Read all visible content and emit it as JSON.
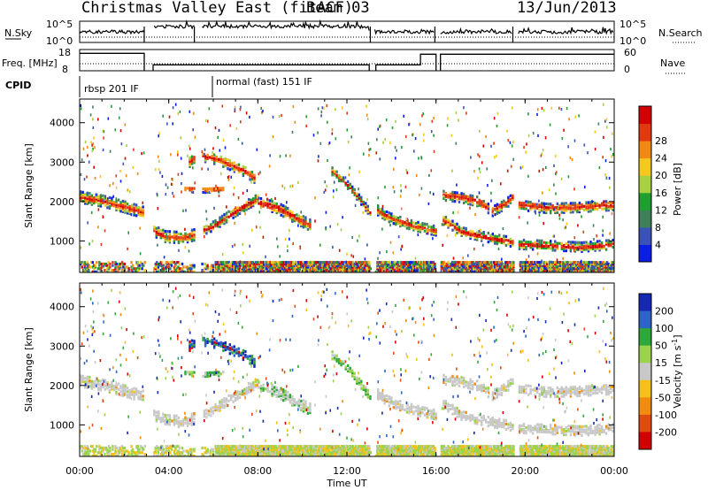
{
  "header": {
    "station": "Christmas Valley East (fitACF)",
    "beam": "Beam 03",
    "date": "13/Jun/2013"
  },
  "chart_data": {
    "type": "heatmap",
    "x_range_hours": [
      0,
      24
    ],
    "x_ticks": [
      "00:00",
      "04:00",
      "08:00",
      "12:00",
      "16:00",
      "20:00",
      "00:00"
    ],
    "x_tick_hours": [
      0,
      4,
      8,
      12,
      16,
      20,
      24
    ],
    "xlabel": "Time UT",
    "data_gaps_hours": [
      [
        2.9,
        3.3
      ],
      [
        5.15,
        5.45
      ],
      [
        13.05,
        13.25
      ],
      [
        15.95,
        16.2
      ],
      [
        19.45,
        19.7
      ]
    ],
    "nsky_panel": {
      "ylabel": "N.Sky",
      "y_ticks": [
        "10^5",
        "10^0"
      ],
      "right_label": "N.Search",
      "right_ticks": [
        "10^5",
        "10^0"
      ]
    },
    "freq_panel": {
      "ylabel": "Freq. [MHz]",
      "y_ticks": [
        18,
        8
      ],
      "right_label": "Nave",
      "right_ticks": [
        60,
        0
      ],
      "freq_segments": [
        {
          "start": 0,
          "end": 2.9,
          "mhz": 16.2
        },
        {
          "start": 3.3,
          "end": 13.0,
          "mhz": 10.8
        },
        {
          "start": 13.3,
          "end": 15.3,
          "mhz": 10.8
        },
        {
          "start": 15.3,
          "end": 16.0,
          "mhz": 15.8
        },
        {
          "start": 16.2,
          "end": 24,
          "mhz": 15.8
        }
      ]
    },
    "cpid": {
      "label": "CPID",
      "segments": [
        {
          "start": 0,
          "end": 6.0,
          "label": "rbsp 201 IF"
        },
        {
          "start": 6.0,
          "end": 24,
          "label": "normal (fast) 151 IF"
        }
      ]
    },
    "power_panel": {
      "ylabel": "Slant Range [km]",
      "y_range": [
        200,
        4600
      ],
      "y_ticks": [
        1000,
        2000,
        3000,
        4000
      ],
      "colorbar_label": "Power [dB]",
      "colorbar_ticks": [
        4,
        8,
        12,
        16,
        20,
        24,
        28
      ]
    },
    "velocity_panel": {
      "ylabel": "Slant Range [km]",
      "y_range": [
        200,
        4600
      ],
      "y_ticks": [
        1000,
        2000,
        3000,
        4000
      ],
      "colorbar_ticks": [
        "200",
        "100",
        "50",
        "15",
        "-15",
        "-50",
        "-100",
        "-200"
      ]
    },
    "power_colors": [
      "#0a1ee6",
      "#3a52b8",
      "#3f7f5a",
      "#1f9f2f",
      "#a8d040",
      "#f5c81e",
      "#f08a14",
      "#e23a10",
      "#d40000"
    ],
    "velocity_colors": [
      "#1428b4",
      "#2c64c8",
      "#2fa83a",
      "#9bd34c",
      "#c8c8c8",
      "#f5c01a",
      "#f08c10",
      "#e04c10",
      "#d20000"
    ],
    "echo_bands": [
      {
        "id": "dawn-band",
        "pts": [
          [
            0.0,
            2150
          ],
          [
            1.0,
            2050
          ],
          [
            2.0,
            1900
          ],
          [
            2.9,
            1750
          ],
          [
            3.3,
            1300
          ],
          [
            3.8,
            1150
          ],
          [
            4.6,
            1120
          ],
          [
            5.15,
            1200
          ]
        ],
        "width": 280
      },
      {
        "id": "dawn-rise",
        "pts": [
          [
            5.45,
            1300
          ],
          [
            6.0,
            1420
          ],
          [
            6.6,
            1650
          ],
          [
            7.3,
            1900
          ],
          [
            8.0,
            2120
          ]
        ],
        "width": 230
      },
      {
        "id": "morning-patch",
        "pts": [
          [
            8.0,
            2000
          ],
          [
            8.8,
            1900
          ],
          [
            9.6,
            1650
          ],
          [
            10.3,
            1450
          ]
        ],
        "width": 300
      },
      {
        "id": "high-patch",
        "pts": [
          [
            4.9,
            3050
          ],
          [
            5.4,
            3200
          ],
          [
            6.2,
            3100
          ],
          [
            6.8,
            2950
          ],
          [
            7.4,
            2800
          ],
          [
            7.8,
            2650
          ]
        ],
        "width": 260
      },
      {
        "id": "mid-patch",
        "pts": [
          [
            4.7,
            2350
          ],
          [
            5.6,
            2330
          ],
          [
            6.4,
            2350
          ]
        ],
        "width": 130
      },
      {
        "id": "noon-streak",
        "pts": [
          [
            11.3,
            2800
          ],
          [
            12.0,
            2450
          ],
          [
            12.6,
            2050
          ],
          [
            13.0,
            1750
          ]
        ],
        "width": 180
      },
      {
        "id": "afternoon-band",
        "pts": [
          [
            13.25,
            1850
          ],
          [
            13.8,
            1650
          ],
          [
            14.5,
            1500
          ],
          [
            15.3,
            1380
          ],
          [
            15.95,
            1300
          ]
        ],
        "width": 240
      },
      {
        "id": "evening-upper",
        "pts": [
          [
            16.2,
            2200
          ],
          [
            17.0,
            2150
          ],
          [
            17.8,
            2050
          ],
          [
            18.5,
            1800
          ],
          [
            19.0,
            1950
          ],
          [
            19.45,
            2150
          ],
          [
            19.7,
            1950
          ],
          [
            21.0,
            1870
          ],
          [
            22.5,
            1900
          ],
          [
            24.0,
            1950
          ]
        ],
        "width": 250
      },
      {
        "id": "evening-lower",
        "pts": [
          [
            16.2,
            1600
          ],
          [
            17.2,
            1250
          ],
          [
            18.5,
            1100
          ],
          [
            19.45,
            1000
          ],
          [
            19.7,
            950
          ],
          [
            21.0,
            920
          ],
          [
            22.5,
            880
          ],
          [
            24.0,
            950
          ]
        ],
        "width": 230
      }
    ]
  }
}
